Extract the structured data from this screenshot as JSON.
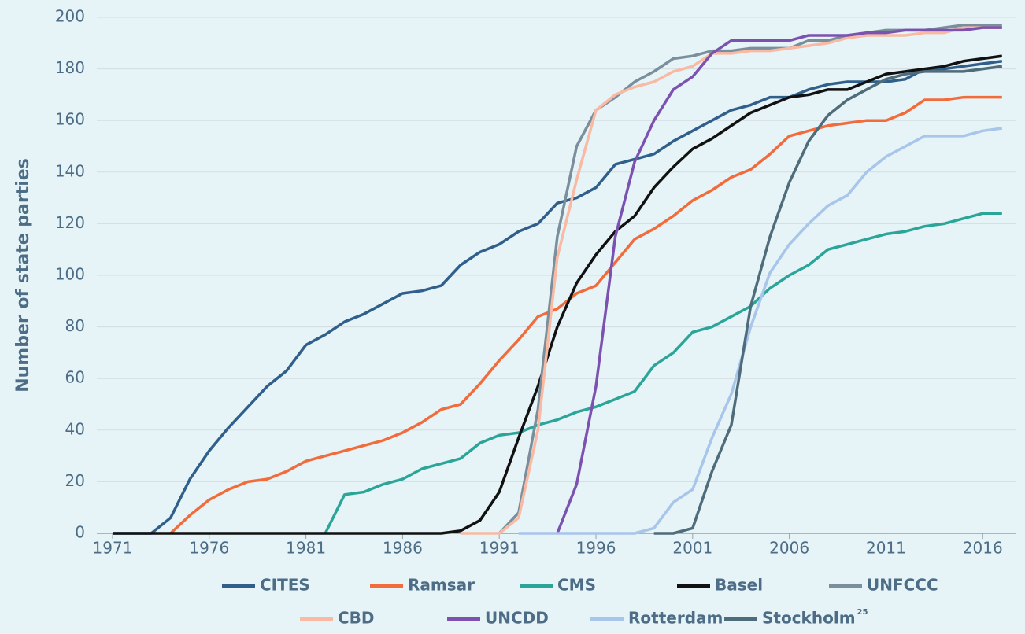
{
  "chart_data": {
    "type": "line",
    "y_label": "Number of state parties",
    "x": [
      1971,
      1972,
      1973,
      1974,
      1975,
      1976,
      1977,
      1978,
      1979,
      1980,
      1981,
      1982,
      1983,
      1984,
      1985,
      1986,
      1987,
      1988,
      1989,
      1990,
      1991,
      1992,
      1993,
      1994,
      1995,
      1996,
      1997,
      1998,
      1999,
      2000,
      2001,
      2002,
      2003,
      2004,
      2005,
      2006,
      2007,
      2008,
      2009,
      2010,
      2011,
      2012,
      2013,
      2014,
      2015,
      2016,
      2017
    ],
    "xlim": [
      1971,
      2017.7
    ],
    "xticks": [
      1971,
      1976,
      1981,
      1986,
      1991,
      1996,
      2001,
      2006,
      2011,
      2016
    ],
    "ylim": [
      0,
      200
    ],
    "yticks": [
      0,
      20,
      40,
      60,
      80,
      100,
      120,
      140,
      160,
      180,
      200
    ],
    "grid": true,
    "legend": "bottom",
    "series": [
      {
        "name": "CITES",
        "color": "#2f5f8a",
        "values": [
          0,
          0,
          0,
          6,
          21,
          32,
          41,
          49,
          57,
          63,
          73,
          77,
          82,
          85,
          89,
          93,
          94,
          96,
          104,
          109,
          112,
          117,
          120,
          128,
          130,
          134,
          143,
          145,
          147,
          152,
          156,
          160,
          164,
          166,
          169,
          169,
          172,
          174,
          175,
          175,
          175,
          176,
          180,
          180,
          181,
          182,
          183
        ]
      },
      {
        "name": "Ramsar",
        "color": "#f26b3a",
        "values": [
          null,
          null,
          null,
          0,
          7,
          13,
          17,
          20,
          21,
          24,
          28,
          30,
          32,
          34,
          36,
          39,
          43,
          48,
          50,
          58,
          67,
          75,
          84,
          87,
          93,
          96,
          105,
          114,
          118,
          123,
          129,
          133,
          138,
          141,
          147,
          154,
          156,
          158,
          159,
          160,
          160,
          163,
          168,
          168,
          169,
          169,
          169
        ]
      },
      {
        "name": "CMS",
        "color": "#2aa598",
        "values": [
          null,
          null,
          null,
          null,
          null,
          null,
          null,
          null,
          null,
          null,
          null,
          0,
          15,
          16,
          19,
          21,
          25,
          27,
          29,
          35,
          38,
          39,
          42,
          44,
          47,
          49,
          52,
          55,
          65,
          70,
          78,
          80,
          84,
          88,
          95,
          100,
          104,
          110,
          112,
          114,
          116,
          117,
          119,
          120,
          122,
          124,
          124
        ]
      },
      {
        "name": "Basel",
        "color": "#111111",
        "values": [
          0,
          0,
          0,
          0,
          0,
          0,
          0,
          0,
          0,
          0,
          0,
          0,
          0,
          0,
          0,
          0,
          0,
          0,
          1,
          5,
          16,
          37,
          57,
          80,
          97,
          108,
          117,
          123,
          134,
          142,
          149,
          153,
          158,
          163,
          166,
          169,
          170,
          172,
          172,
          175,
          178,
          179,
          180,
          181,
          183,
          184,
          185
        ]
      },
      {
        "name": "UNFCCC",
        "color": "#7a8e9b",
        "values": [
          null,
          null,
          null,
          null,
          null,
          null,
          null,
          null,
          null,
          null,
          null,
          null,
          null,
          null,
          null,
          null,
          null,
          null,
          null,
          null,
          0,
          8,
          48,
          115,
          150,
          164,
          169,
          175,
          179,
          184,
          185,
          187,
          187,
          188,
          188,
          188,
          191,
          191,
          193,
          194,
          195,
          195,
          195,
          196,
          197,
          197,
          197
        ]
      },
      {
        "name": "CBD",
        "color": "#f9b9a2",
        "values": [
          null,
          null,
          null,
          null,
          null,
          null,
          null,
          null,
          null,
          null,
          null,
          null,
          null,
          null,
          null,
          null,
          null,
          null,
          0,
          0,
          0,
          6,
          40,
          107,
          137,
          164,
          170,
          173,
          175,
          179,
          181,
          186,
          186,
          187,
          187,
          188,
          189,
          190,
          192,
          193,
          193,
          193,
          194,
          194,
          196,
          196,
          196
        ]
      },
      {
        "name": "UNCDD",
        "color": "#7b52b0",
        "values": [
          null,
          null,
          null,
          null,
          null,
          null,
          null,
          null,
          null,
          null,
          null,
          null,
          null,
          null,
          null,
          null,
          null,
          null,
          null,
          null,
          null,
          null,
          null,
          0,
          19,
          57,
          115,
          144,
          160,
          172,
          177,
          186,
          191,
          191,
          191,
          191,
          193,
          193,
          193,
          194,
          194,
          195,
          195,
          195,
          195,
          196,
          196
        ]
      },
      {
        "name": "Rotterdam",
        "color": "#a8c5ea",
        "values": [
          null,
          null,
          null,
          null,
          null,
          null,
          null,
          null,
          null,
          null,
          null,
          null,
          null,
          null,
          null,
          null,
          null,
          null,
          null,
          null,
          null,
          0,
          0,
          0,
          0,
          0,
          0,
          0,
          2,
          12,
          17,
          37,
          54,
          80,
          101,
          112,
          120,
          127,
          131,
          140,
          146,
          150,
          154,
          154,
          154,
          156,
          157
        ]
      },
      {
        "name": "Stockholm",
        "name_note": "25",
        "color": "#4f6c7b",
        "values": [
          null,
          null,
          null,
          null,
          null,
          null,
          null,
          null,
          null,
          null,
          null,
          null,
          null,
          null,
          null,
          null,
          null,
          null,
          null,
          null,
          null,
          null,
          null,
          null,
          null,
          null,
          null,
          null,
          0,
          0,
          2,
          24,
          42,
          88,
          115,
          136,
          152,
          162,
          168,
          172,
          176,
          178,
          179,
          179,
          179,
          180,
          181
        ]
      }
    ]
  }
}
